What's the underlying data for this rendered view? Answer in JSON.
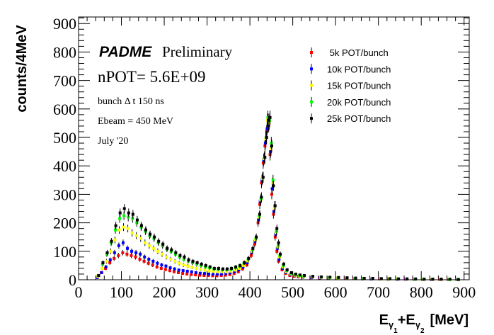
{
  "chart_data": {
    "type": "scatter",
    "xlabel_parts": {
      "e1": "E",
      "g1": "γ",
      "s1": "1",
      "plus": "+",
      "e2": "E",
      "g2": "γ",
      "s2": "2",
      "unit": "[MeV]"
    },
    "ylabel": "counts/4MeV",
    "xlim": [
      0,
      912
    ],
    "ylim": [
      0,
      923
    ],
    "x_ticks": [
      "0",
      "100",
      "200",
      "300",
      "400",
      "500",
      "600",
      "700",
      "800",
      "900"
    ],
    "y_ticks": [
      "0",
      "100",
      "200",
      "300",
      "400",
      "500",
      "600",
      "700",
      "800",
      "900"
    ],
    "grid": false,
    "legend_placement": "top-right",
    "annotations": {
      "brand": "PADME",
      "brand_suffix": "Preliminary",
      "npot": "nPOT= 5.6E+09",
      "bunch": "bunch Δ t 150 ns",
      "ebeam": "Ebeam = 450 MeV",
      "date": "July '20"
    },
    "x": [
      45,
      55,
      65,
      75,
      85,
      95,
      105,
      115,
      125,
      135,
      145,
      155,
      165,
      175,
      185,
      195,
      205,
      215,
      225,
      235,
      245,
      255,
      265,
      275,
      285,
      295,
      305,
      315,
      325,
      335,
      345,
      355,
      365,
      375,
      385,
      395,
      405,
      413,
      421,
      425,
      429,
      433,
      437,
      441,
      445,
      449,
      453,
      457,
      461,
      465,
      469,
      477,
      485,
      495,
      505,
      515,
      525,
      545,
      565,
      585,
      605,
      625,
      645,
      665,
      685,
      705,
      725,
      745,
      765,
      785,
      805,
      825,
      845,
      865,
      885
    ],
    "series": [
      {
        "name": " 5k POT/bunch",
        "color": "#ff0000",
        "values": [
          8,
          25,
          40,
          60,
          75,
          85,
          95,
          90,
          85,
          80,
          72,
          65,
          58,
          52,
          45,
          40,
          36,
          32,
          28,
          25,
          22,
          20,
          18,
          17,
          16,
          15,
          15,
          14,
          14,
          15,
          16,
          18,
          22,
          28,
          38,
          52,
          85,
          125,
          200,
          265,
          340,
          410,
          470,
          520,
          540,
          440,
          300,
          230,
          150,
          100,
          65,
          35,
          22,
          15,
          12,
          10,
          9,
          7,
          6,
          5,
          5,
          4,
          4,
          3,
          3,
          3,
          2,
          2,
          2,
          2,
          1,
          1,
          1,
          1,
          1
        ]
      },
      {
        "name": "10k POT/bunch",
        "color": "#0000ff",
        "values": [
          8,
          25,
          45,
          70,
          95,
          120,
          130,
          110,
          100,
          95,
          90,
          80,
          72,
          65,
          58,
          52,
          48,
          42,
          38,
          34,
          32,
          30,
          28,
          25,
          23,
          22,
          20,
          20,
          20,
          20,
          22,
          24,
          28,
          35,
          45,
          60,
          95,
          135,
          210,
          275,
          350,
          420,
          480,
          530,
          545,
          450,
          320,
          240,
          160,
          110,
          72,
          40,
          25,
          17,
          14,
          12,
          10,
          8,
          7,
          6,
          5,
          5,
          4,
          4,
          3,
          3,
          3,
          2,
          2,
          2,
          2,
          1,
          1,
          1,
          1
        ]
      },
      {
        "name": "15k POT/bunch",
        "color": "#ffff00",
        "values": [
          12,
          40,
          65,
          100,
          140,
          175,
          185,
          180,
          165,
          155,
          145,
          130,
          120,
          110,
          100,
          90,
          80,
          72,
          65,
          58,
          52,
          48,
          44,
          40,
          37,
          34,
          31,
          29,
          28,
          28,
          28,
          30,
          34,
          40,
          50,
          66,
          100,
          140,
          220,
          280,
          355,
          425,
          495,
          560,
          550,
          460,
          340,
          250,
          165,
          115,
          80,
          45,
          28,
          20,
          16,
          13,
          12,
          10,
          8,
          7,
          6,
          5,
          5,
          4,
          4,
          3,
          3,
          3,
          2,
          2,
          2,
          2,
          1,
          1,
          1
        ]
      },
      {
        "name": "20k POT/bunch",
        "color": "#00ff00",
        "values": [
          15,
          55,
          90,
          130,
          175,
          215,
          225,
          220,
          215,
          200,
          185,
          170,
          155,
          145,
          130,
          120,
          108,
          100,
          90,
          80,
          72,
          65,
          60,
          55,
          50,
          45,
          42,
          38,
          36,
          35,
          35,
          37,
          42,
          48,
          58,
          72,
          105,
          145,
          225,
          285,
          360,
          430,
          500,
          570,
          560,
          480,
          350,
          260,
          170,
          120,
          85,
          50,
          32,
          22,
          18,
          15,
          13,
          11,
          9,
          8,
          7,
          6,
          5,
          5,
          4,
          4,
          3,
          3,
          3,
          2,
          2,
          2,
          2,
          1,
          1
        ]
      },
      {
        "name": "25k POT/bunch",
        "color": "#000000",
        "values": [
          15,
          60,
          95,
          135,
          190,
          235,
          250,
          235,
          230,
          210,
          190,
          175,
          160,
          150,
          135,
          125,
          110,
          105,
          95,
          85,
          80,
          70,
          65,
          60,
          55,
          50,
          45,
          40,
          40,
          38,
          38,
          40,
          45,
          50,
          60,
          75,
          110,
          150,
          230,
          290,
          360,
          430,
          500,
          560,
          570,
          470,
          330,
          260,
          180,
          130,
          90,
          55,
          35,
          25,
          20,
          17,
          15,
          12,
          10,
          9,
          8,
          7,
          6,
          5,
          5,
          4,
          4,
          3,
          3,
          3,
          2,
          2,
          2,
          2,
          1
        ]
      }
    ]
  }
}
